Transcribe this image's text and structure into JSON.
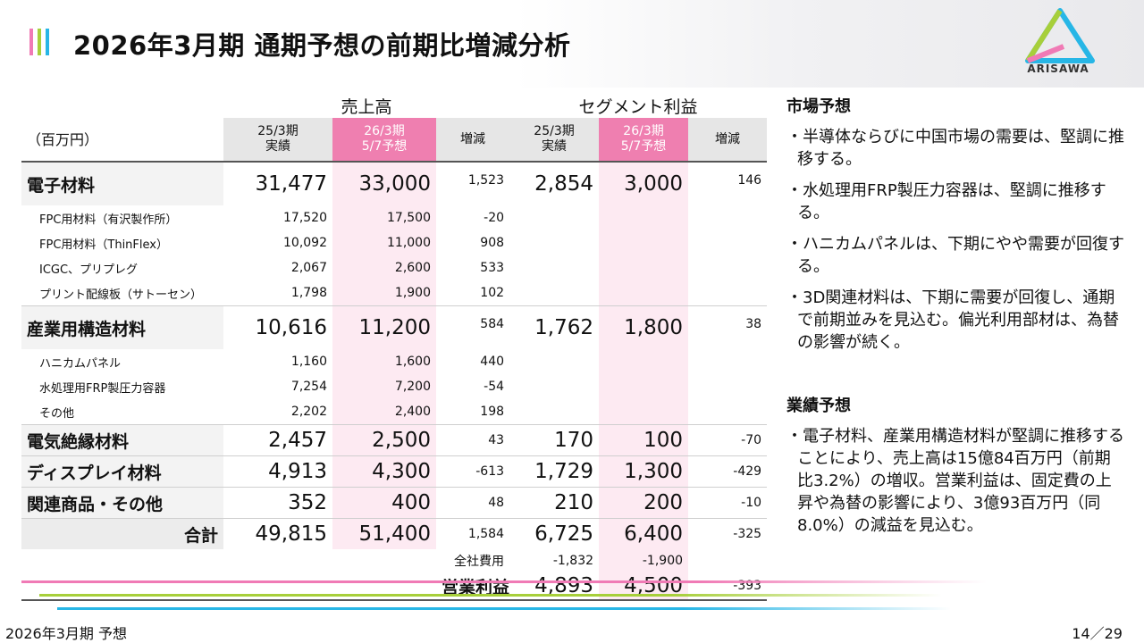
{
  "header": {
    "title": "2026年3月期 通期予想の前期比増減分析",
    "accent_colors": [
      "#f07ab5",
      "#a7cf3a",
      "#27b6e6"
    ],
    "logo_text": "ARISAWA"
  },
  "table": {
    "group_sales": "売上高",
    "group_segment": "セグメント利益",
    "unit": "（百万円）",
    "col_prev_1": "25/3期",
    "col_prev_2": "実績",
    "col_fc_1": "26/3期",
    "col_fc_2": "5/7予想",
    "col_change": "増減",
    "rows": [
      {
        "label": "電子材料",
        "s_prev": "31,477",
        "s_fc": "33,000",
        "s_chg": "1,523",
        "p_prev": "2,854",
        "p_fc": "3,000",
        "p_chg": "146"
      },
      {
        "label": "FPC用材料（有沢製作所）",
        "s_prev": "17,520",
        "s_fc": "17,500",
        "s_chg": "-20"
      },
      {
        "label": "FPC用材料（ThinFlex）",
        "s_prev": "10,092",
        "s_fc": "11,000",
        "s_chg": "908"
      },
      {
        "label": "ICGC、プリプレグ",
        "s_prev": "2,067",
        "s_fc": "2,600",
        "s_chg": "533"
      },
      {
        "label": "プリント配線板（サトーセン）",
        "s_prev": "1,798",
        "s_fc": "1,900",
        "s_chg": "102"
      },
      {
        "label": "産業用構造材料",
        "s_prev": "10,616",
        "s_fc": "11,200",
        "s_chg": "584",
        "p_prev": "1,762",
        "p_fc": "1,800",
        "p_chg": "38"
      },
      {
        "label": "ハニカムパネル",
        "s_prev": "1,160",
        "s_fc": "1,600",
        "s_chg": "440"
      },
      {
        "label": "水処理用FRP製圧力容器",
        "s_prev": "7,254",
        "s_fc": "7,200",
        "s_chg": "-54"
      },
      {
        "label": "その他",
        "s_prev": "2,202",
        "s_fc": "2,400",
        "s_chg": "198"
      },
      {
        "label": "電気絶縁材料",
        "s_prev": "2,457",
        "s_fc": "2,500",
        "s_chg": "43",
        "p_prev": "170",
        "p_fc": "100",
        "p_chg": "-70"
      },
      {
        "label": "ディスプレイ材料",
        "s_prev": "4,913",
        "s_fc": "4,300",
        "s_chg": "-613",
        "p_prev": "1,729",
        "p_fc": "1,300",
        "p_chg": "-429"
      },
      {
        "label": "関連商品・その他",
        "s_prev": "352",
        "s_fc": "400",
        "s_chg": "48",
        "p_prev": "210",
        "p_fc": "200",
        "p_chg": "-10"
      },
      {
        "label": "合計",
        "s_prev": "49,815",
        "s_fc": "51,400",
        "s_chg": "1,584",
        "p_prev": "6,725",
        "p_fc": "6,400",
        "p_chg": "-325"
      }
    ],
    "corporate": {
      "label": "全社費用",
      "p_prev": "-1,832",
      "p_fc": "-1,900"
    },
    "operating": {
      "label": "営業利益",
      "p_prev": "4,893",
      "p_fc": "4,500",
      "p_chg": "-393"
    }
  },
  "market": {
    "heading": "市場予想",
    "items": [
      "・半導体ならびに中国市場の需要は、堅調に推移する。",
      "・水処理用FRP製圧力容器は、堅調に推移する。",
      "・ハニカムパネルは、下期にやや需要が回復する。",
      "・3D関連材料は、下期に需要が回復し、通期で前期並みを見込む。偏光利用部材は、為替の影響が続く。"
    ]
  },
  "performance": {
    "heading": "業績予想",
    "items": [
      "・電子材料、産業用構造材料が堅調に推移することにより、売上高は15億84百万円（前期比3.2%）の増収。営業利益は、固定費の上昇や為替の影響により、3億93百万円（同8.0%）の減益を見込む。"
    ]
  },
  "footer": {
    "left": "2026年3月期 予想",
    "right": "14／29"
  }
}
